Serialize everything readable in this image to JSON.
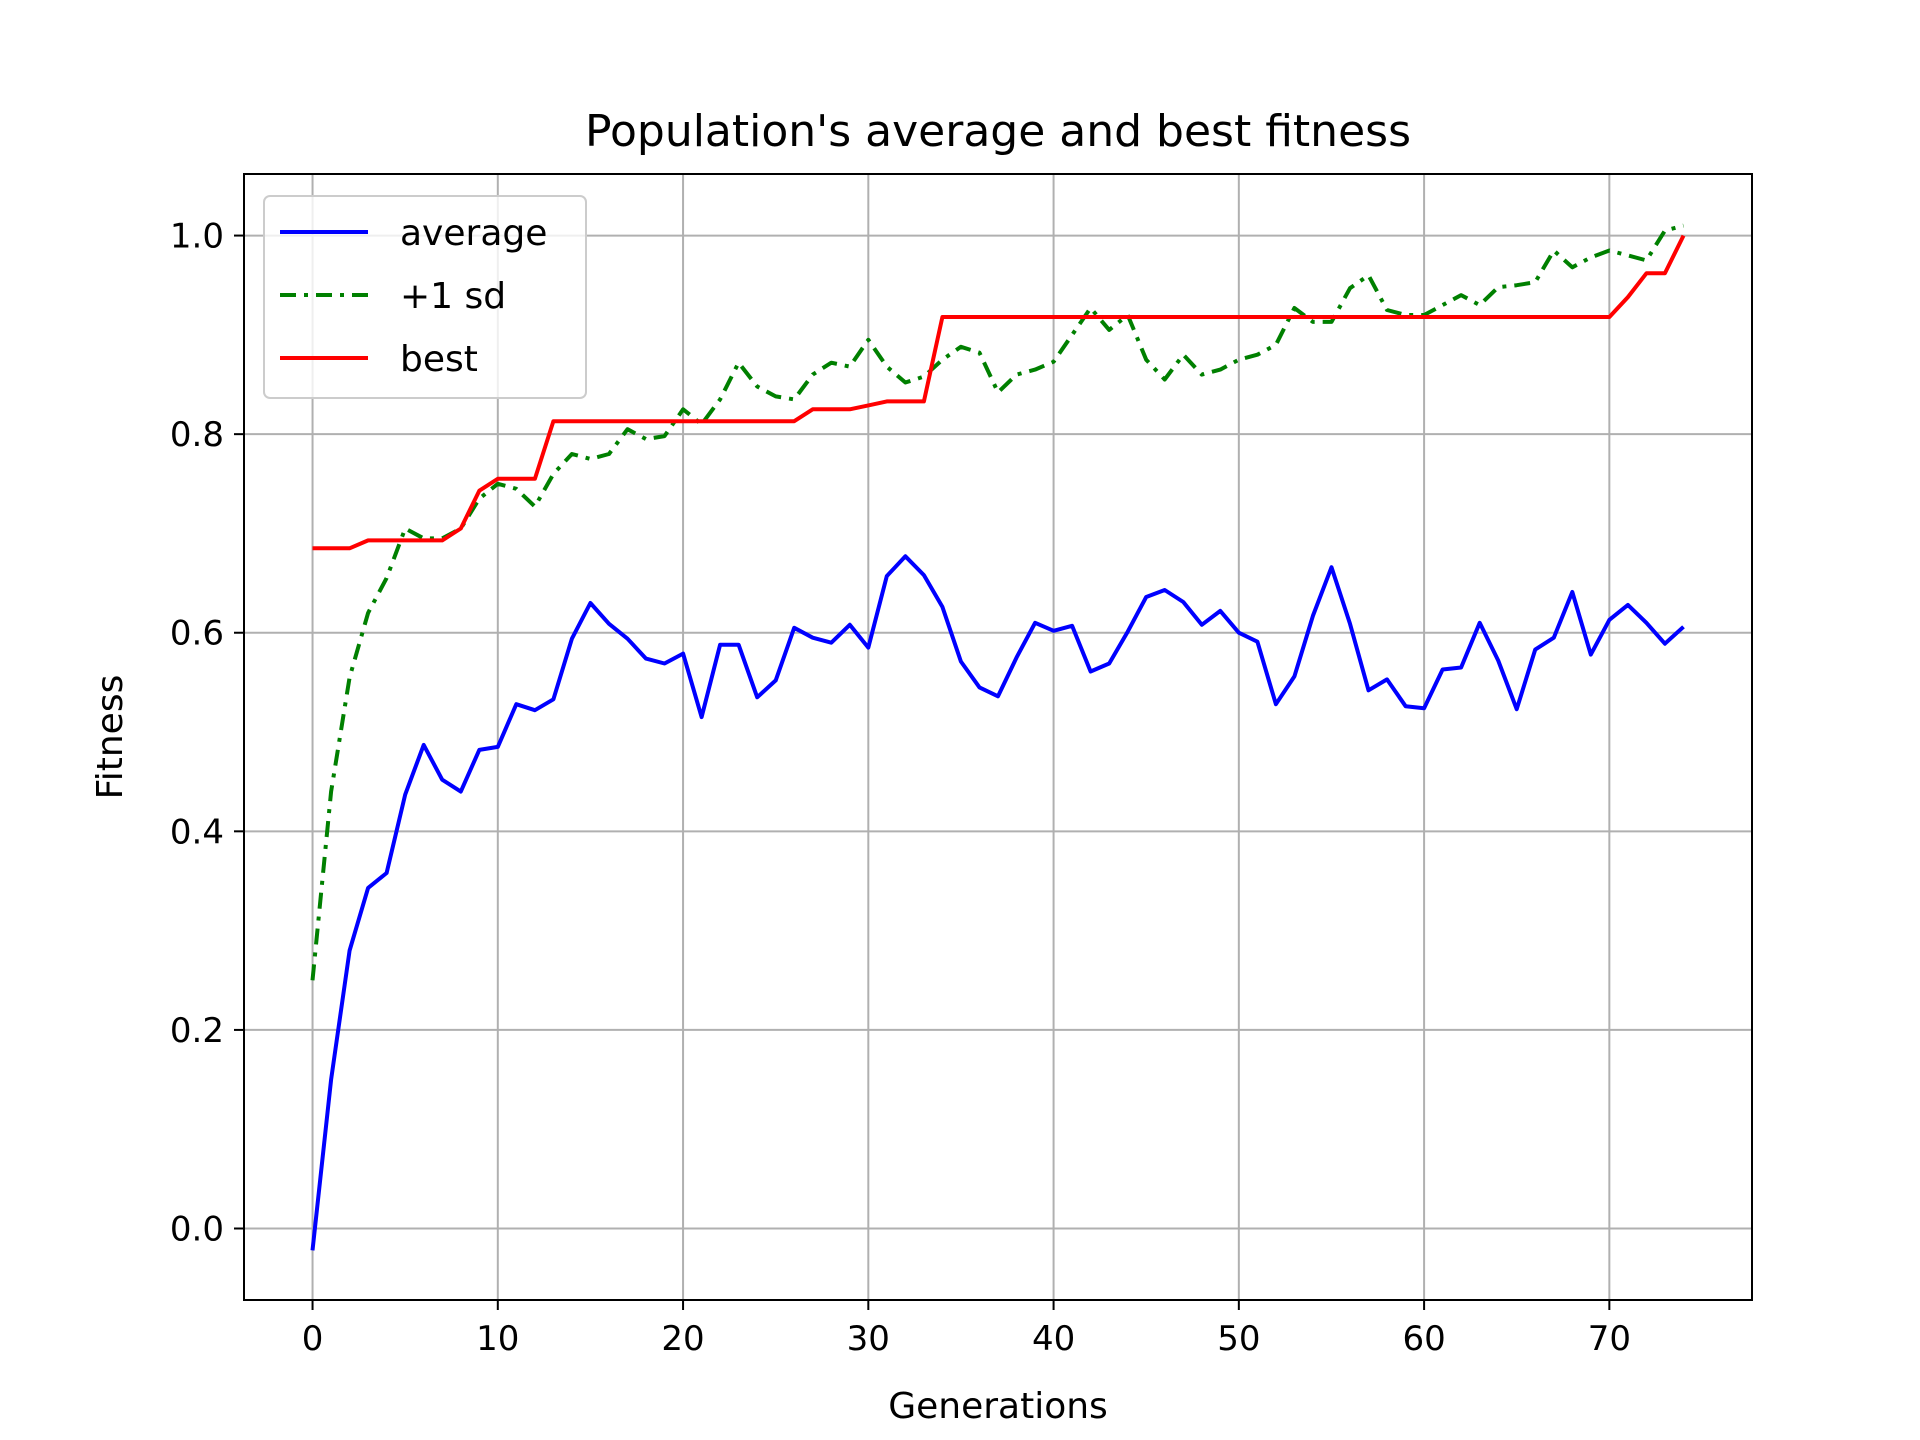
{
  "chart_data": {
    "type": "line",
    "title": "Population's average and best fitness",
    "xlabel": "Generations",
    "ylabel": "Fitness",
    "xlim": [
      -3.7,
      77.7
    ],
    "ylim": [
      -0.072,
      1.062
    ],
    "xticks": [
      0,
      10,
      20,
      30,
      40,
      50,
      60,
      70
    ],
    "yticks": [
      0.0,
      0.2,
      0.4,
      0.6,
      0.8,
      1.0
    ],
    "xtick_labels": [
      "0",
      "10",
      "20",
      "30",
      "40",
      "50",
      "60",
      "70"
    ],
    "ytick_labels": [
      "0.0",
      "0.2",
      "0.4",
      "0.6",
      "0.8",
      "1.0"
    ],
    "grid": true,
    "legend_position": "top-left",
    "x": [
      0,
      1,
      2,
      3,
      4,
      5,
      6,
      7,
      8,
      9,
      10,
      11,
      12,
      13,
      14,
      15,
      16,
      17,
      18,
      19,
      20,
      21,
      22,
      23,
      24,
      25,
      26,
      27,
      28,
      29,
      30,
      31,
      32,
      33,
      34,
      35,
      36,
      37,
      38,
      39,
      40,
      41,
      42,
      43,
      44,
      45,
      46,
      47,
      48,
      49,
      50,
      51,
      52,
      53,
      54,
      55,
      56,
      57,
      58,
      59,
      60,
      61,
      62,
      63,
      64,
      65,
      66,
      67,
      68,
      69,
      70,
      71,
      72,
      73,
      74
    ],
    "series": [
      {
        "name": "average",
        "color": "#0000ff",
        "style": "solid",
        "values": [
          -0.022,
          0.15,
          0.28,
          0.343,
          0.358,
          0.437,
          0.487,
          0.452,
          0.44,
          0.482,
          0.485,
          0.528,
          0.522,
          0.533,
          0.594,
          0.63,
          0.609,
          0.594,
          0.574,
          0.569,
          0.579,
          0.515,
          0.588,
          0.588,
          0.535,
          0.552,
          0.605,
          0.595,
          0.59,
          0.608,
          0.585,
          0.657,
          0.677,
          0.658,
          0.626,
          0.571,
          0.545,
          0.536,
          0.575,
          0.61,
          0.602,
          0.607,
          0.561,
          0.569,
          0.601,
          0.636,
          0.643,
          0.631,
          0.608,
          0.622,
          0.6,
          0.591,
          0.528,
          0.556,
          0.617,
          0.666,
          0.609,
          0.542,
          0.553,
          0.526,
          0.524,
          0.563,
          0.565,
          0.61,
          0.572,
          0.523,
          0.583,
          0.595,
          0.641,
          0.578,
          0.613,
          0.628,
          0.61,
          0.589,
          0.606
        ]
      },
      {
        "name": "+1 sd",
        "color": "#008000",
        "style": "dashdot",
        "values": [
          0.25,
          0.44,
          0.555,
          0.62,
          0.655,
          0.705,
          0.695,
          0.695,
          0.705,
          0.735,
          0.75,
          0.745,
          0.727,
          0.76,
          0.78,
          0.775,
          0.78,
          0.805,
          0.795,
          0.798,
          0.825,
          0.81,
          0.835,
          0.872,
          0.848,
          0.838,
          0.835,
          0.86,
          0.872,
          0.868,
          0.895,
          0.868,
          0.852,
          0.858,
          0.875,
          0.888,
          0.882,
          0.842,
          0.86,
          0.865,
          0.873,
          0.9,
          0.927,
          0.905,
          0.92,
          0.875,
          0.855,
          0.88,
          0.86,
          0.865,
          0.875,
          0.88,
          0.89,
          0.927,
          0.913,
          0.913,
          0.947,
          0.96,
          0.925,
          0.92,
          0.92,
          0.93,
          0.94,
          0.93,
          0.948,
          0.95,
          0.953,
          0.985,
          0.968,
          0.978,
          0.985,
          0.98,
          0.975,
          1.005,
          1.01
        ]
      },
      {
        "name": "best",
        "color": "#ff0000",
        "style": "solid",
        "values": [
          0.685,
          0.685,
          0.685,
          0.693,
          0.693,
          0.693,
          0.693,
          0.693,
          0.705,
          0.743,
          0.755,
          0.755,
          0.755,
          0.813,
          0.813,
          0.813,
          0.813,
          0.813,
          0.813,
          0.813,
          0.813,
          0.813,
          0.813,
          0.813,
          0.813,
          0.813,
          0.813,
          0.825,
          0.825,
          0.825,
          0.829,
          0.833,
          0.833,
          0.833,
          0.918,
          0.918,
          0.918,
          0.918,
          0.918,
          0.918,
          0.918,
          0.918,
          0.918,
          0.918,
          0.918,
          0.918,
          0.918,
          0.918,
          0.918,
          0.918,
          0.918,
          0.918,
          0.918,
          0.918,
          0.918,
          0.918,
          0.918,
          0.918,
          0.918,
          0.918,
          0.918,
          0.918,
          0.918,
          0.918,
          0.918,
          0.918,
          0.918,
          0.918,
          0.918,
          0.918,
          0.918,
          0.938,
          0.962,
          0.962,
          1.0
        ]
      }
    ]
  }
}
